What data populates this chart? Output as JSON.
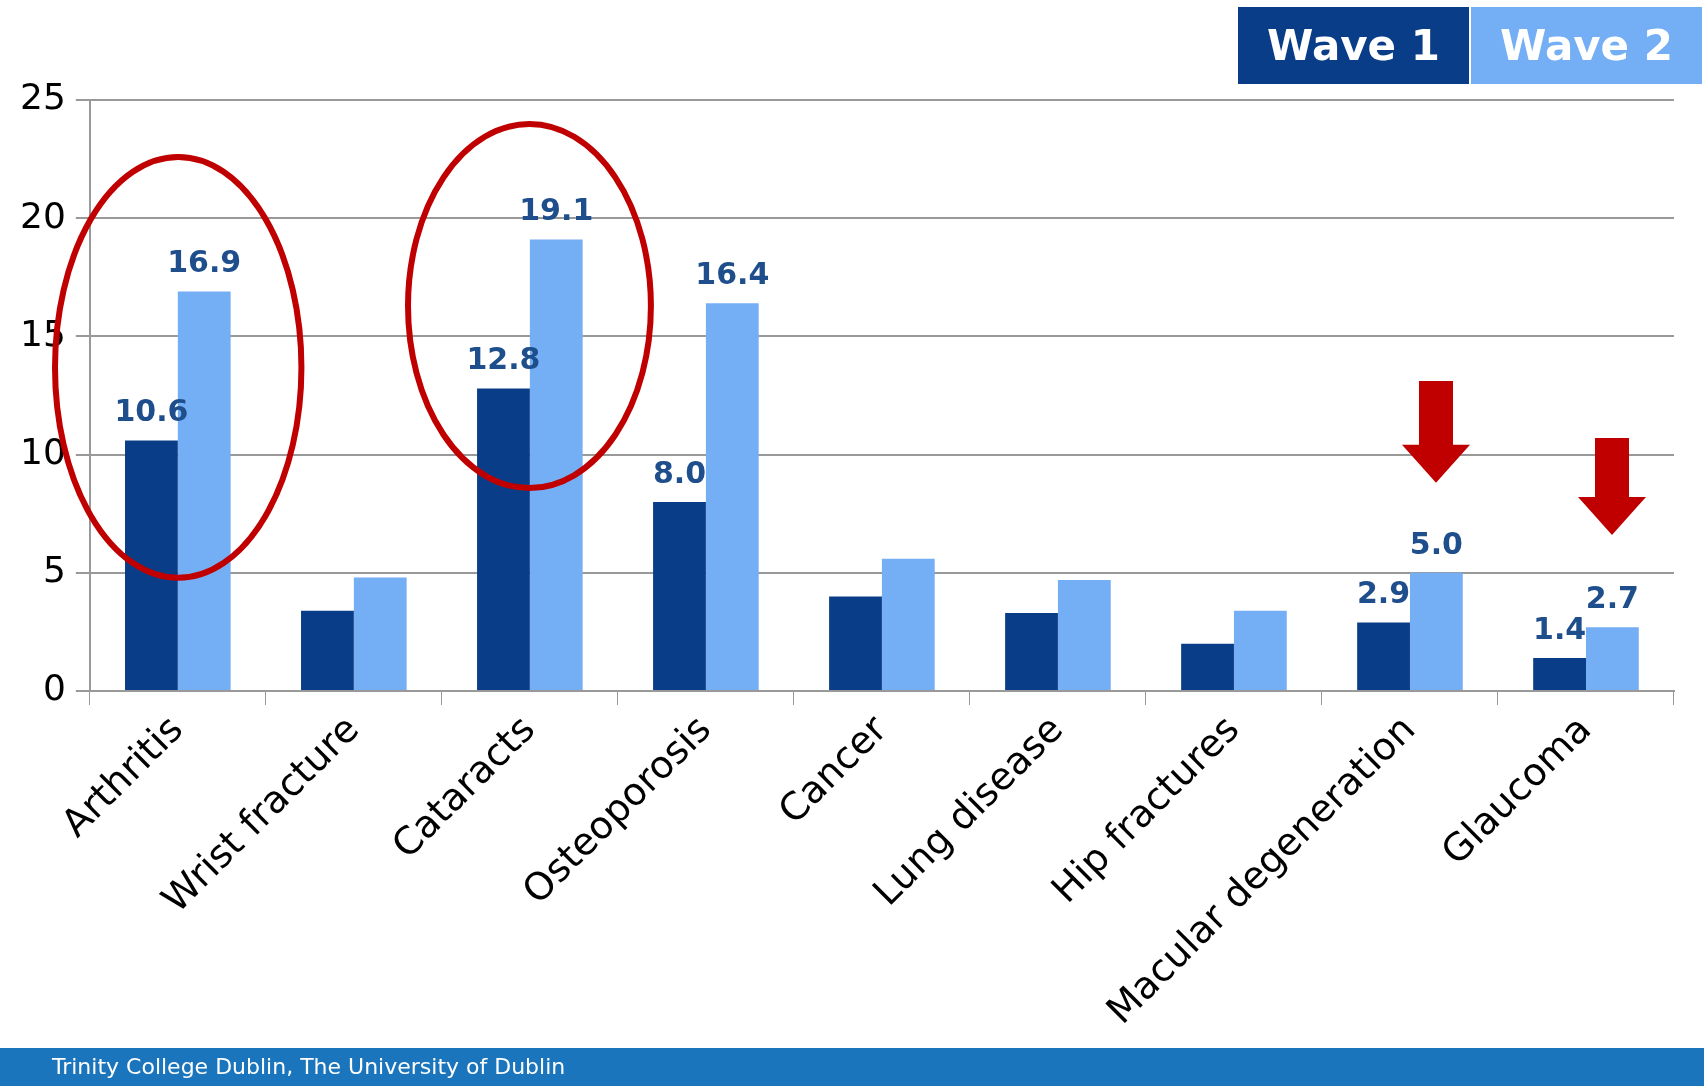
{
  "chart_data": {
    "type": "bar",
    "categories": [
      "Arthritis",
      "Wrist fracture",
      "Cataracts",
      "Osteoporosis",
      "Cancer",
      "Lung disease",
      "Hip fractures",
      "Macular degeneration",
      "Glaucoma"
    ],
    "series": [
      {
        "name": "Wave 1",
        "color": "#0a3d87",
        "values": [
          10.6,
          3.4,
          12.8,
          8.0,
          4.0,
          3.3,
          2.0,
          2.9,
          1.4
        ],
        "value_labels": [
          "10.6",
          null,
          "12.8",
          "8.0",
          null,
          null,
          null,
          "2.9",
          "1.4"
        ]
      },
      {
        "name": "Wave 2",
        "color": "#74aef5",
        "values": [
          16.9,
          4.8,
          19.1,
          16.4,
          5.6,
          4.7,
          3.4,
          5.0,
          2.7
        ],
        "value_labels": [
          "16.9",
          null,
          "19.1",
          "16.4",
          null,
          null,
          null,
          "5.0",
          "2.7"
        ]
      }
    ],
    "ylim": [
      0,
      25
    ],
    "yticks": [
      0,
      5,
      10,
      15,
      20,
      25
    ],
    "grid": "y",
    "legend": "top right",
    "annotations": [
      "Trinity College Dublin, The University of Dublin"
    ]
  }
}
